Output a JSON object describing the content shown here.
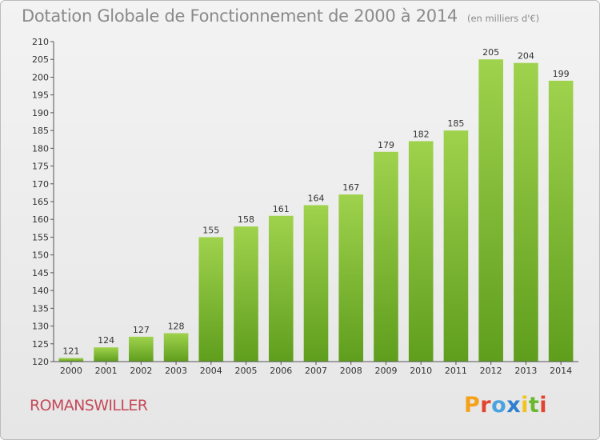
{
  "chart_data": {
    "type": "bar",
    "title": "Dotation Globale de Fonctionnement de 2000 à 2014",
    "subtitle": "(en milliers d'€)",
    "categories": [
      "2000",
      "2001",
      "2002",
      "2003",
      "2004",
      "2005",
      "2006",
      "2007",
      "2008",
      "2009",
      "2010",
      "2011",
      "2012",
      "2013",
      "2014"
    ],
    "values": [
      121,
      124,
      127,
      128,
      155,
      158,
      161,
      164,
      167,
      179,
      182,
      185,
      205,
      204,
      199
    ],
    "ylim": [
      120,
      210
    ],
    "yticks": [
      120,
      125,
      130,
      135,
      140,
      145,
      150,
      155,
      160,
      165,
      170,
      175,
      180,
      185,
      190,
      195,
      200,
      205,
      210
    ],
    "grid": false,
    "bar_color": "#8cc63f",
    "legend": "none"
  },
  "footer": {
    "place": "ROMANSWILLER",
    "logo_text": "Proxiti",
    "logo_colors": [
      "#f5a21b",
      "#e2452f",
      "#4aa3df",
      "#2e7fd0",
      "#f0c419",
      "#6ab82e",
      "#e2452f"
    ]
  }
}
